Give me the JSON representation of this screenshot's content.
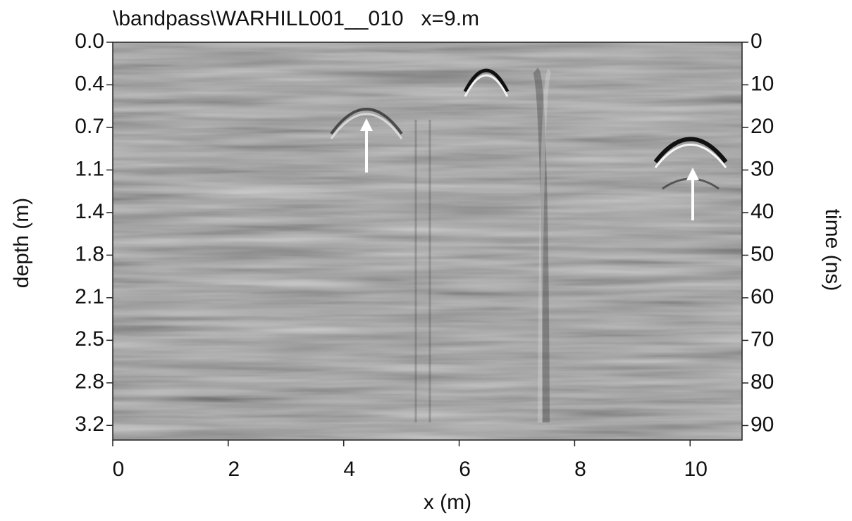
{
  "chart_data": {
    "type": "radargram",
    "title": "\\bandpass\\WARHILL001__010   x=9.m",
    "x_label": "x (m)",
    "y_label": "depth (m)",
    "y2_label": "time (ns)",
    "xlim": [
      0,
      10.9
    ],
    "xticks": [
      0,
      2,
      4,
      6,
      8,
      10
    ],
    "ylim": [
      0,
      3.27
    ],
    "yticks": [
      {
        "value": 0,
        "label": "0.0"
      },
      {
        "value": 0.35,
        "label": "0.4"
      },
      0.7,
      {
        "value": 1.05,
        "label": "1.1"
      },
      1.4,
      {
        "value": 1.75,
        "label": "1.8"
      },
      2.1,
      {
        "value": 2.45,
        "label": "2.5"
      },
      2.8,
      {
        "value": 3.15,
        "label": "3.2"
      }
    ],
    "y2lim": [
      0,
      93.4
    ],
    "y2ticks": [
      0,
      10,
      20,
      30,
      40,
      50,
      60,
      70,
      80,
      90
    ]
  }
}
